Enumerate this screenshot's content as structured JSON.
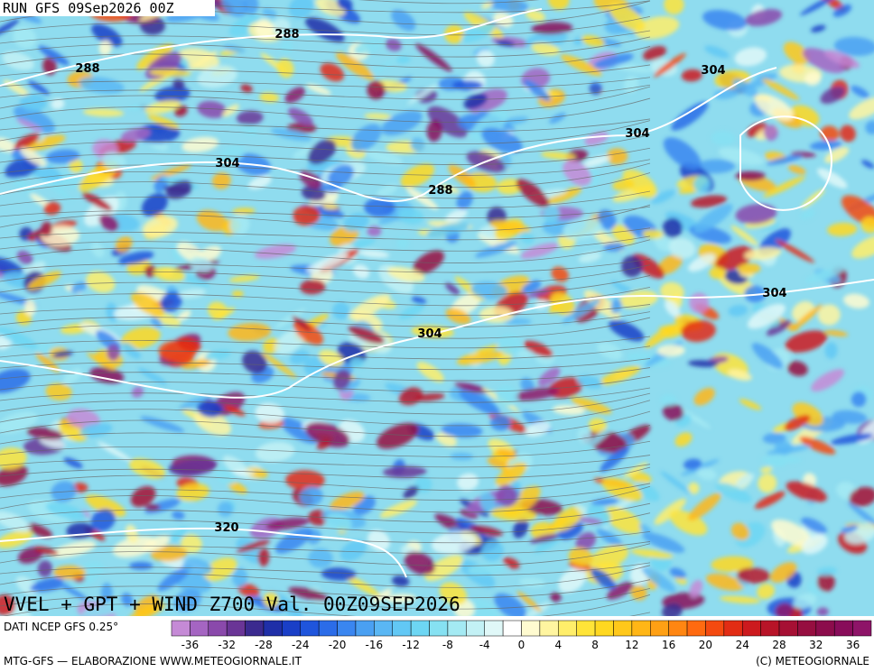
{
  "header": {
    "run": "RUN GFS 09Sep2026 00Z"
  },
  "map": {
    "contour_labels": [
      "288",
      "288",
      "304",
      "288",
      "304",
      "304",
      "304",
      "304",
      "320"
    ]
  },
  "title": "VVEL + GPT + WIND Z700 Val. 00Z09SEP2026",
  "source": "DATI NCEP GFS 0.25°",
  "legend": {
    "colors": [
      "#c58ad6",
      "#a565c2",
      "#8a49ab",
      "#6a3596",
      "#3b2a8f",
      "#1f2fa8",
      "#1a3fc7",
      "#1f55dc",
      "#2b6ce8",
      "#3a86f0",
      "#4aa0f2",
      "#5ab7f4",
      "#62c8f5",
      "#6dd6f3",
      "#86e1f2",
      "#a4eaf3",
      "#c3f1f5",
      "#e0f8f8",
      "#ffffff",
      "#fffbd0",
      "#fff5a0",
      "#ffee6a",
      "#ffe438",
      "#ffd820",
      "#ffc81a",
      "#ffb616",
      "#ffa014",
      "#ff8612",
      "#ff6a10",
      "#f44a10",
      "#e22c14",
      "#cc1a1e",
      "#b81428",
      "#a61034",
      "#960e40",
      "#8c0c4c",
      "#880c5a",
      "#8e1468"
    ],
    "ticks": [
      -36,
      -32,
      -28,
      -24,
      -20,
      -16,
      -12,
      -8,
      -4,
      0,
      4,
      8,
      12,
      16,
      20,
      24,
      28,
      32,
      36
    ]
  },
  "footer": {
    "left": "MTG-GFS — ELABORAZIONE WWW.METEOGIORNALE.IT",
    "right": "(C) METEOGIORNALE"
  }
}
